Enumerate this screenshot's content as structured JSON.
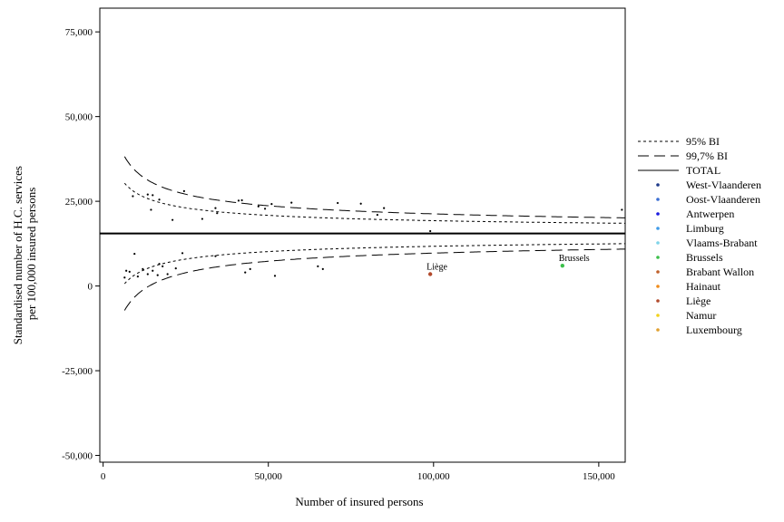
{
  "chart_data": {
    "type": "scatter",
    "title": "",
    "xlabel": "Number of insured persons",
    "ylabel_lines": [
      "Standardised number of H.C. services",
      "per 100,000 insured persons"
    ],
    "xlim": [
      -1000,
      158000
    ],
    "ylim": [
      -52000,
      82000
    ],
    "x_ticks": [
      0,
      50000,
      100000,
      150000
    ],
    "x_tick_labels": [
      "0",
      "50,000",
      "100,000",
      "150,000"
    ],
    "y_ticks": [
      -50000,
      -25000,
      0,
      25000,
      50000,
      75000
    ],
    "y_tick_labels": [
      "-50,000",
      "-25,000",
      "0",
      "25,000",
      "50,000",
      "75,000"
    ],
    "total_line": 15500,
    "bands": [
      {
        "name": "95% BI",
        "style": "short-dash",
        "z": 1.96
      },
      {
        "name": "99,7% BI",
        "style": "long-dash",
        "z": 3.0
      }
    ],
    "band_curve_x_start": 6500,
    "legend": {
      "placement": "right",
      "line_entries": [
        {
          "label": "95% BI",
          "style": "short-dash"
        },
        {
          "label": "99,7% BI",
          "style": "long-dash"
        },
        {
          "label": "TOTAL",
          "style": "solid"
        }
      ],
      "point_entries": [
        {
          "label": "West-Vlaanderen",
          "color": "#1f3a8a"
        },
        {
          "label": "Oost-Vlaanderen",
          "color": "#3b6fd4"
        },
        {
          "label": "Antwerpen",
          "color": "#1a1adf"
        },
        {
          "label": "Limburg",
          "color": "#3f9be8"
        },
        {
          "label": "Vlaams-Brabant",
          "color": "#7fd3e8"
        },
        {
          "label": "Brussels",
          "color": "#3cbf4a"
        },
        {
          "label": "Brabant Wallon",
          "color": "#c0612b"
        },
        {
          "label": "Hainaut",
          "color": "#f08c1a"
        },
        {
          "label": "Liège",
          "color": "#b24a2c"
        },
        {
          "label": "Namur",
          "color": "#f2d21b"
        },
        {
          "label": "Luxembourg",
          "color": "#e0a030"
        }
      ]
    },
    "points": [
      {
        "x": 9000,
        "y": 26500
      },
      {
        "x": 13500,
        "y": 27000
      },
      {
        "x": 15000,
        "y": 26800
      },
      {
        "x": 17000,
        "y": 25500
      },
      {
        "x": 14500,
        "y": 22500
      },
      {
        "x": 21000,
        "y": 19500
      },
      {
        "x": 24500,
        "y": 28000
      },
      {
        "x": 30000,
        "y": 19800
      },
      {
        "x": 34000,
        "y": 23000
      },
      {
        "x": 34500,
        "y": 21500
      },
      {
        "x": 41000,
        "y": 25200
      },
      {
        "x": 42000,
        "y": 25300
      },
      {
        "x": 47000,
        "y": 23500
      },
      {
        "x": 49000,
        "y": 22800
      },
      {
        "x": 51000,
        "y": 24200
      },
      {
        "x": 57000,
        "y": 24600
      },
      {
        "x": 71000,
        "y": 24500
      },
      {
        "x": 78000,
        "y": 24300
      },
      {
        "x": 83000,
        "y": 21000
      },
      {
        "x": 85000,
        "y": 23000
      },
      {
        "x": 99000,
        "y": 16200
      },
      {
        "x": 157000,
        "y": 22500
      },
      {
        "x": 6500,
        "y": 2500
      },
      {
        "x": 7000,
        "y": 4500
      },
      {
        "x": 8000,
        "y": 4200
      },
      {
        "x": 9500,
        "y": 9500
      },
      {
        "x": 10500,
        "y": 2800
      },
      {
        "x": 12000,
        "y": 5000
      },
      {
        "x": 13500,
        "y": 3500
      },
      {
        "x": 15000,
        "y": 4500
      },
      {
        "x": 16500,
        "y": 3200
      },
      {
        "x": 17000,
        "y": 6500
      },
      {
        "x": 18000,
        "y": 5800
      },
      {
        "x": 19500,
        "y": 3500
      },
      {
        "x": 22000,
        "y": 5200
      },
      {
        "x": 24000,
        "y": 9700
      },
      {
        "x": 34000,
        "y": 8800
      },
      {
        "x": 43000,
        "y": 4000
      },
      {
        "x": 44500,
        "y": 5000
      },
      {
        "x": 52000,
        "y": 3000
      },
      {
        "x": 65000,
        "y": 5800
      },
      {
        "x": 66500,
        "y": 5000
      },
      {
        "x": 99000,
        "y": 3500,
        "color": "#b24a2c",
        "label": "Liège"
      },
      {
        "x": 139000,
        "y": 6000,
        "color": "#3cbf4a",
        "label": "Brussels"
      }
    ]
  }
}
